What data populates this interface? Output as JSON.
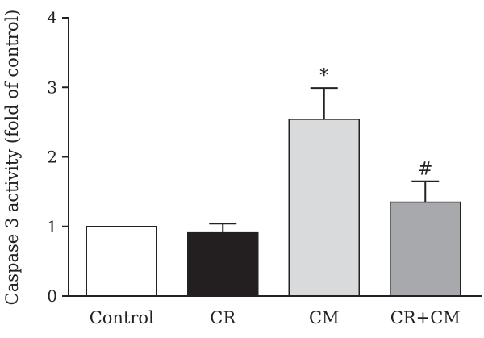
{
  "chart_data": {
    "type": "bar",
    "title": "",
    "xlabel": "",
    "ylabel": "Caspase 3 activity (fold of control)",
    "ylim": [
      0,
      4
    ],
    "yticks": [
      "0",
      "1",
      "2",
      "3",
      "4"
    ],
    "categories": [
      "Control",
      "CR",
      "CM",
      "CR+CM"
    ],
    "values": [
      1.0,
      0.92,
      2.54,
      1.35
    ],
    "errors": [
      0.0,
      0.12,
      0.45,
      0.3
    ],
    "annotations": [
      "",
      "",
      "*",
      "#"
    ],
    "colors": [
      "#ffffff",
      "#231f20",
      "#d9dadc",
      "#a7a9ac"
    ],
    "grid": false
  }
}
